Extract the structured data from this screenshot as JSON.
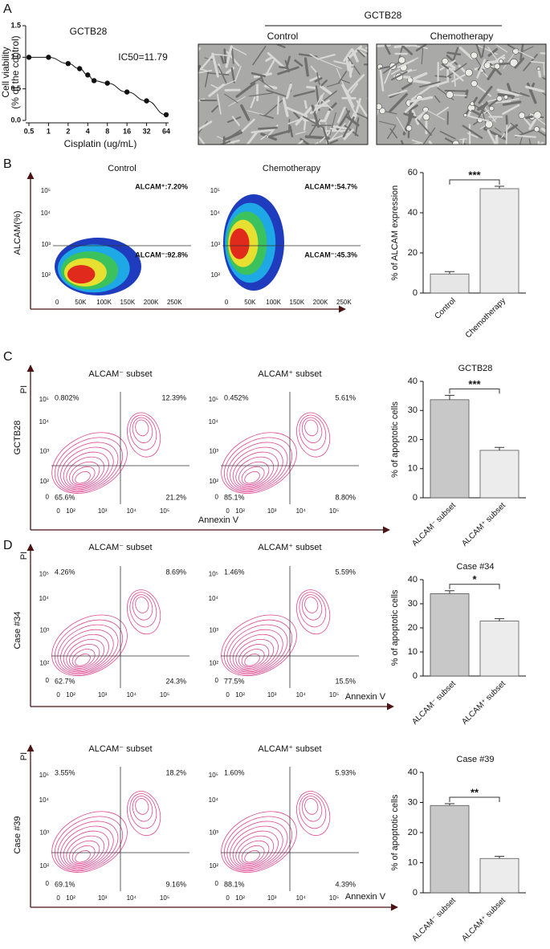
{
  "panel_labels": [
    "A",
    "B",
    "C",
    "D"
  ],
  "micrographs": {
    "title": "GCTB28",
    "labels": [
      "Control",
      "Chemotherapy"
    ]
  },
  "flow_panels": [
    {
      "y_label": "ALCAM(%)",
      "xticks": [
        "0",
        "50K",
        "100K",
        "150K",
        "200K",
        "250K"
      ],
      "yticks": [
        "10²",
        "10³",
        "10⁴",
        "10⁵"
      ],
      "plots": [
        {
          "title": "Control",
          "labels": [
            "ALCAM⁺:7.20%",
            "ALCAM⁻:92.8%"
          ]
        },
        {
          "title": "Chemotherapy",
          "labels": [
            "ALCAM⁺:54.7%",
            "ALCAM⁻:45.3%"
          ]
        }
      ]
    },
    {
      "y_label": "GCTB28",
      "axis_label": "PI",
      "x_label": "Annexin V",
      "xticks": [
        "0",
        "10²",
        "10³",
        "10⁴",
        "10⁵"
      ],
      "yticks": [
        "0",
        "10²",
        "10³",
        "10⁴",
        "10⁵"
      ],
      "plots": [
        {
          "title": "ALCAM⁻ subset",
          "quadrants": [
            "0.802%",
            "12.39%",
            "65.6%",
            "21.2%"
          ]
        },
        {
          "title": "ALCAM⁺ subset",
          "quadrants": [
            "0.452%",
            "5.61%",
            "85.1%",
            "8.80%"
          ]
        }
      ]
    },
    {
      "y_label": "Case #34",
      "axis_label": "PI",
      "x_label": "Annexin V",
      "xticks": [
        "0",
        "10²",
        "10³",
        "10⁴",
        "10⁵"
      ],
      "yticks": [
        "0",
        "10²",
        "10³",
        "10⁴",
        "10⁵"
      ],
      "plots": [
        {
          "title": "ALCAM⁻ subset",
          "quadrants": [
            "4.26%",
            "8.69%",
            "62.7%",
            "24.3%"
          ]
        },
        {
          "title": "ALCAM⁺ subset",
          "quadrants": [
            "1.46%",
            "5.59%",
            "77.5%",
            "15.5%"
          ]
        }
      ]
    },
    {
      "y_label": "Case #39",
      "axis_label": "PI",
      "x_label": "Annexin V",
      "xticks": [
        "0",
        "10²",
        "10³",
        "10⁴",
        "10⁵"
      ],
      "yticks": [
        "0",
        "10²",
        "10³",
        "10⁴",
        "10⁵"
      ],
      "plots": [
        {
          "title": "ALCAM⁻ subset",
          "quadrants": [
            "3.55%",
            "18.2%",
            "69.1%",
            "9.16%"
          ]
        },
        {
          "title": "ALCAM⁺ subset",
          "quadrants": [
            "1.60%",
            "5.93%",
            "88.1%",
            "4.39%"
          ]
        }
      ]
    }
  ],
  "chart_data": [
    {
      "type": "scatter",
      "title": "GCTB28",
      "annotation": "IC50=11.79",
      "x_label": "Cisplatin (ug/mL)",
      "y_label": [
        "Cell viability",
        "(% of the control)"
      ],
      "x": [
        0.5,
        1,
        2,
        3,
        4,
        5,
        8,
        16,
        32,
        64
      ],
      "values": [
        1.0,
        1.0,
        0.9,
        0.82,
        0.72,
        0.63,
        0.59,
        0.45,
        0.31,
        0.09
      ],
      "color": "#111111",
      "xscale": "log",
      "xlim": [
        0.5,
        64
      ],
      "xticks": [
        0.5,
        1,
        2,
        4,
        8,
        16,
        32,
        64
      ],
      "ylim": [
        0,
        1.5
      ],
      "yticks": [
        {
          "value": 0,
          "label": "0.0"
        },
        0.5,
        {
          "value": 1,
          "label": "1.0"
        },
        1.5
      ]
    },
    {
      "type": "bar",
      "y_label": "% of ALCAM expression",
      "categories": [
        "Control",
        "Chemotherapy"
      ],
      "values": [
        9.5,
        52
      ],
      "errors": [
        1.2,
        1.2
      ],
      "colors": [
        "#e6e6e6",
        "#ececec"
      ],
      "ylim": [
        0,
        60
      ],
      "yticks": [
        0,
        20,
        40,
        60
      ],
      "significance": "***"
    },
    {
      "type": "bar",
      "title": "GCTB28",
      "y_label": "% of  apoptotic cells",
      "categories": [
        "ALCAM⁻ subset",
        "ALCAM⁺ subset"
      ],
      "values": [
        33.7,
        16.3
      ],
      "errors": [
        1.5,
        1.0
      ],
      "colors": [
        "#c8c8c8",
        "#ececec"
      ],
      "ylim": [
        0,
        40
      ],
      "yticks": [
        0,
        10,
        20,
        30,
        40
      ],
      "significance": "***"
    },
    {
      "type": "bar",
      "title": "Case #34",
      "y_label": "% of  apoptotic cells",
      "categories": [
        "ALCAM⁻ subset",
        "ALCAM⁺ subset"
      ],
      "values": [
        34.2,
        22.8
      ],
      "errors": [
        1.2,
        1.0
      ],
      "colors": [
        "#c8c8c8",
        "#ececec"
      ],
      "ylim": [
        0,
        40
      ],
      "yticks": [
        0,
        10,
        20,
        30,
        40
      ],
      "significance": "*"
    },
    {
      "type": "bar",
      "title": "Case #39",
      "y_label": "% of  apoptotic cells",
      "categories": [
        "ALCAM⁻ subset",
        "ALCAM⁺ subset"
      ],
      "values": [
        29,
        11.4
      ],
      "errors": [
        0.6,
        0.7
      ],
      "colors": [
        "#c8c8c8",
        "#ececec"
      ],
      "ylim": [
        0,
        40
      ],
      "yticks": [
        0,
        10,
        20,
        30,
        40
      ],
      "significance": "**"
    }
  ]
}
